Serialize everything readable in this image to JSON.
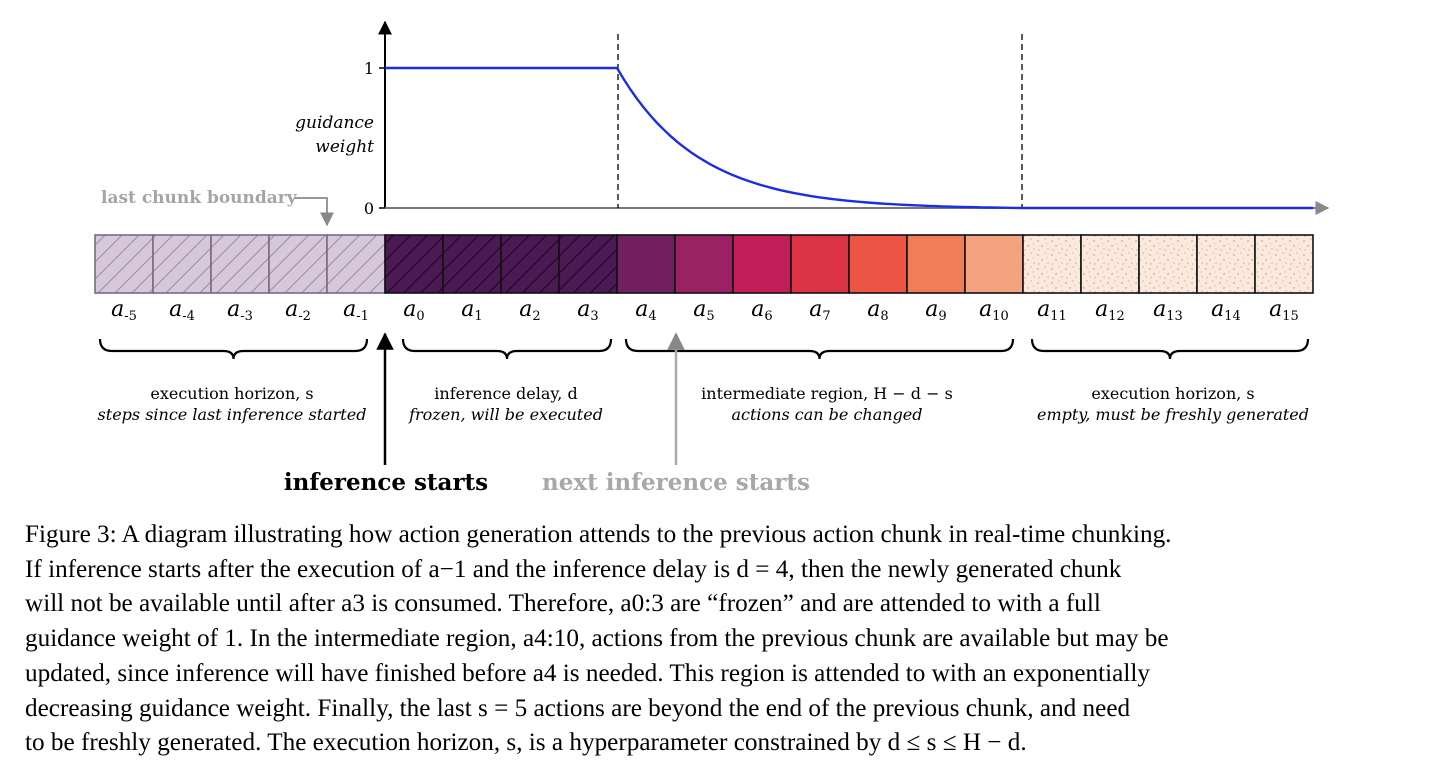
{
  "plot": {
    "y_axis_label": [
      "guidance",
      "weight"
    ],
    "y_ticks": [
      "1",
      "0"
    ],
    "curve_color": "#1a2ee6",
    "curve": {
      "flat_weight_until_index": 4,
      "decay_end_index": 11,
      "x_max_index": 21
    }
  },
  "annotations": {
    "last_chunk_boundary": "last chunk boundary",
    "inference_starts": "inference starts",
    "next_inference_starts": "next inference starts"
  },
  "cells": [
    {
      "sub": "-5",
      "style": "hatch-light",
      "color": "#d7c7da"
    },
    {
      "sub": "-4",
      "style": "hatch-light",
      "color": "#d7c7da"
    },
    {
      "sub": "-3",
      "style": "hatch-light",
      "color": "#d7c7da"
    },
    {
      "sub": "-2",
      "style": "hatch-light",
      "color": "#d7c7da"
    },
    {
      "sub": "-1",
      "style": "hatch-light",
      "color": "#d7c7da"
    },
    {
      "sub": "0",
      "style": "hatch-dark",
      "color": "#4b1a55"
    },
    {
      "sub": "1",
      "style": "hatch-dark",
      "color": "#4b1a55"
    },
    {
      "sub": "2",
      "style": "hatch-dark",
      "color": "#4b1a55"
    },
    {
      "sub": "3",
      "style": "hatch-dark",
      "color": "#4b1a55"
    },
    {
      "sub": "4",
      "style": "solid",
      "color": "#721f5f"
    },
    {
      "sub": "5",
      "style": "solid",
      "color": "#9a2164"
    },
    {
      "sub": "6",
      "style": "solid",
      "color": "#c21e57"
    },
    {
      "sub": "7",
      "style": "solid",
      "color": "#dc3246"
    },
    {
      "sub": "8",
      "style": "solid",
      "color": "#ec5545"
    },
    {
      "sub": "9",
      "style": "solid",
      "color": "#f27b58"
    },
    {
      "sub": "10",
      "style": "solid",
      "color": "#f4a380"
    },
    {
      "sub": "11",
      "style": "dots",
      "color": "#fbe9dd"
    },
    {
      "sub": "12",
      "style": "dots",
      "color": "#fbe9dd"
    },
    {
      "sub": "13",
      "style": "dots",
      "color": "#fbe9dd"
    },
    {
      "sub": "14",
      "style": "dots",
      "color": "#fbe9dd"
    },
    {
      "sub": "15",
      "style": "dots",
      "color": "#fbe9dd"
    }
  ],
  "cell_symbol": "a",
  "regions": [
    {
      "line1": "execution horizon, s",
      "line2": "steps since last inference started"
    },
    {
      "line1": "inference delay, d",
      "line2": "frozen, will be executed"
    },
    {
      "line1": "intermediate region, H − d − s",
      "line2": "actions can be changed"
    },
    {
      "line1": "execution horizon, s",
      "line2": "empty, must be freshly generated"
    }
  ],
  "caption": [
    "Figure 3: A diagram illustrating how action generation attends to the previous action chunk in real-time chunking.",
    "If inference starts after the execution of a−1 and the inference delay is d = 4, then the newly generated chunk",
    "will not be available until after a3 is consumed.  Therefore, a0:3 are “frozen” and are attended to with a full",
    "guidance weight of 1. In the intermediate region, a4:10, actions from the previous chunk are available but may be",
    "updated, since inference will have finished before a4 is needed. This region is attended to with an exponentially",
    "decreasing guidance weight. Finally, the last s = 5 actions are beyond the end of the previous chunk, and need",
    "to be freshly generated. The execution horizon, s, is a hyperparameter constrained by d ≤ s ≤ H − d."
  ]
}
